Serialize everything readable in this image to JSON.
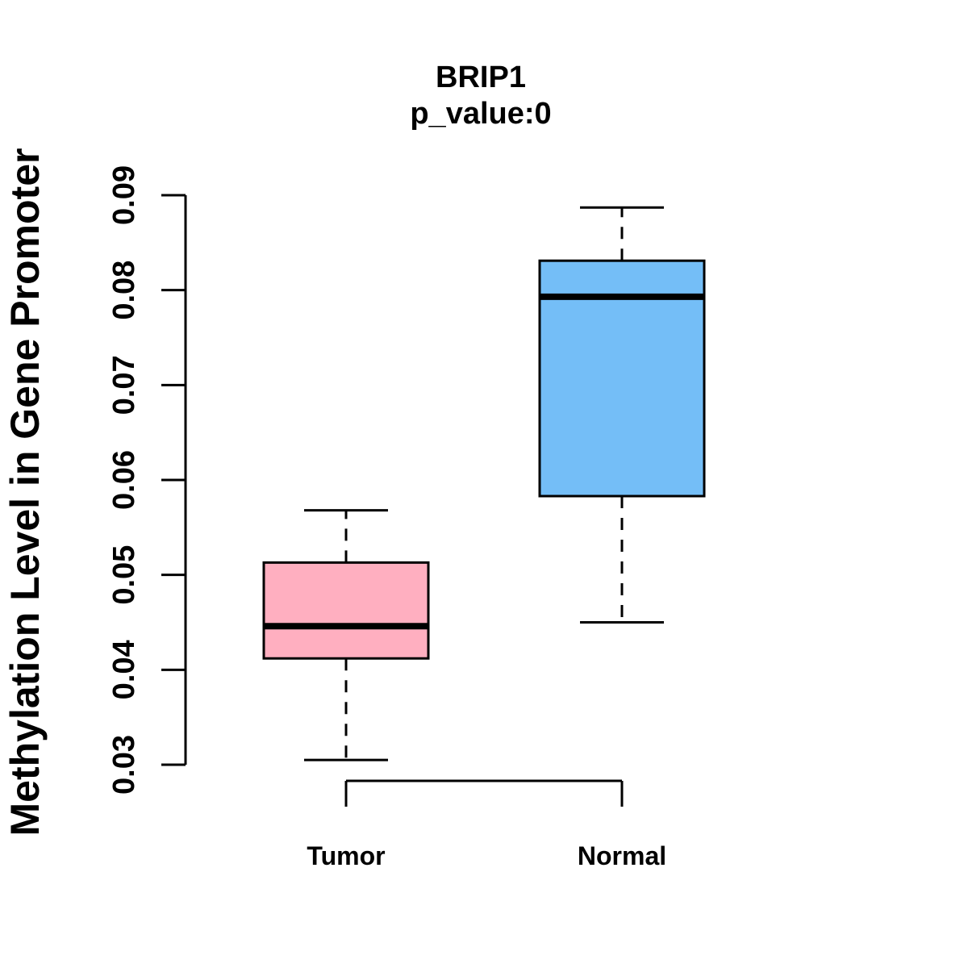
{
  "chart_data": {
    "type": "boxplot",
    "title": "BRIP1",
    "subtitle": "p_value:0",
    "ylabel": "Methylation Level in Gene Promoter",
    "xlabel": "",
    "categories": [
      "Tumor",
      "Normal"
    ],
    "series": [
      {
        "name": "Tumor",
        "fill_color": "#FFAFC0",
        "border_color": "#000000",
        "min": 0.0305,
        "q1": 0.0412,
        "median": 0.0446,
        "q3": 0.0513,
        "max": 0.0568
      },
      {
        "name": "Normal",
        "fill_color": "#74BEF7",
        "border_color": "#000000",
        "min": 0.045,
        "q1": 0.0583,
        "median": 0.0793,
        "q3": 0.0831,
        "max": 0.0887
      }
    ],
    "ylim": [
      0.03,
      0.09
    ],
    "yticks": [
      0.03,
      0.04,
      0.05,
      0.06,
      0.07,
      0.08,
      0.09
    ],
    "ytick_labels": [
      "0.03",
      "0.04",
      "0.05",
      "0.06",
      "0.07",
      "0.08",
      "0.09"
    ],
    "grid": false,
    "legend": "none",
    "background": "#FFFFFF",
    "axis_color": "#000000",
    "median_color": "#000000",
    "whisker_style": "dashed"
  }
}
